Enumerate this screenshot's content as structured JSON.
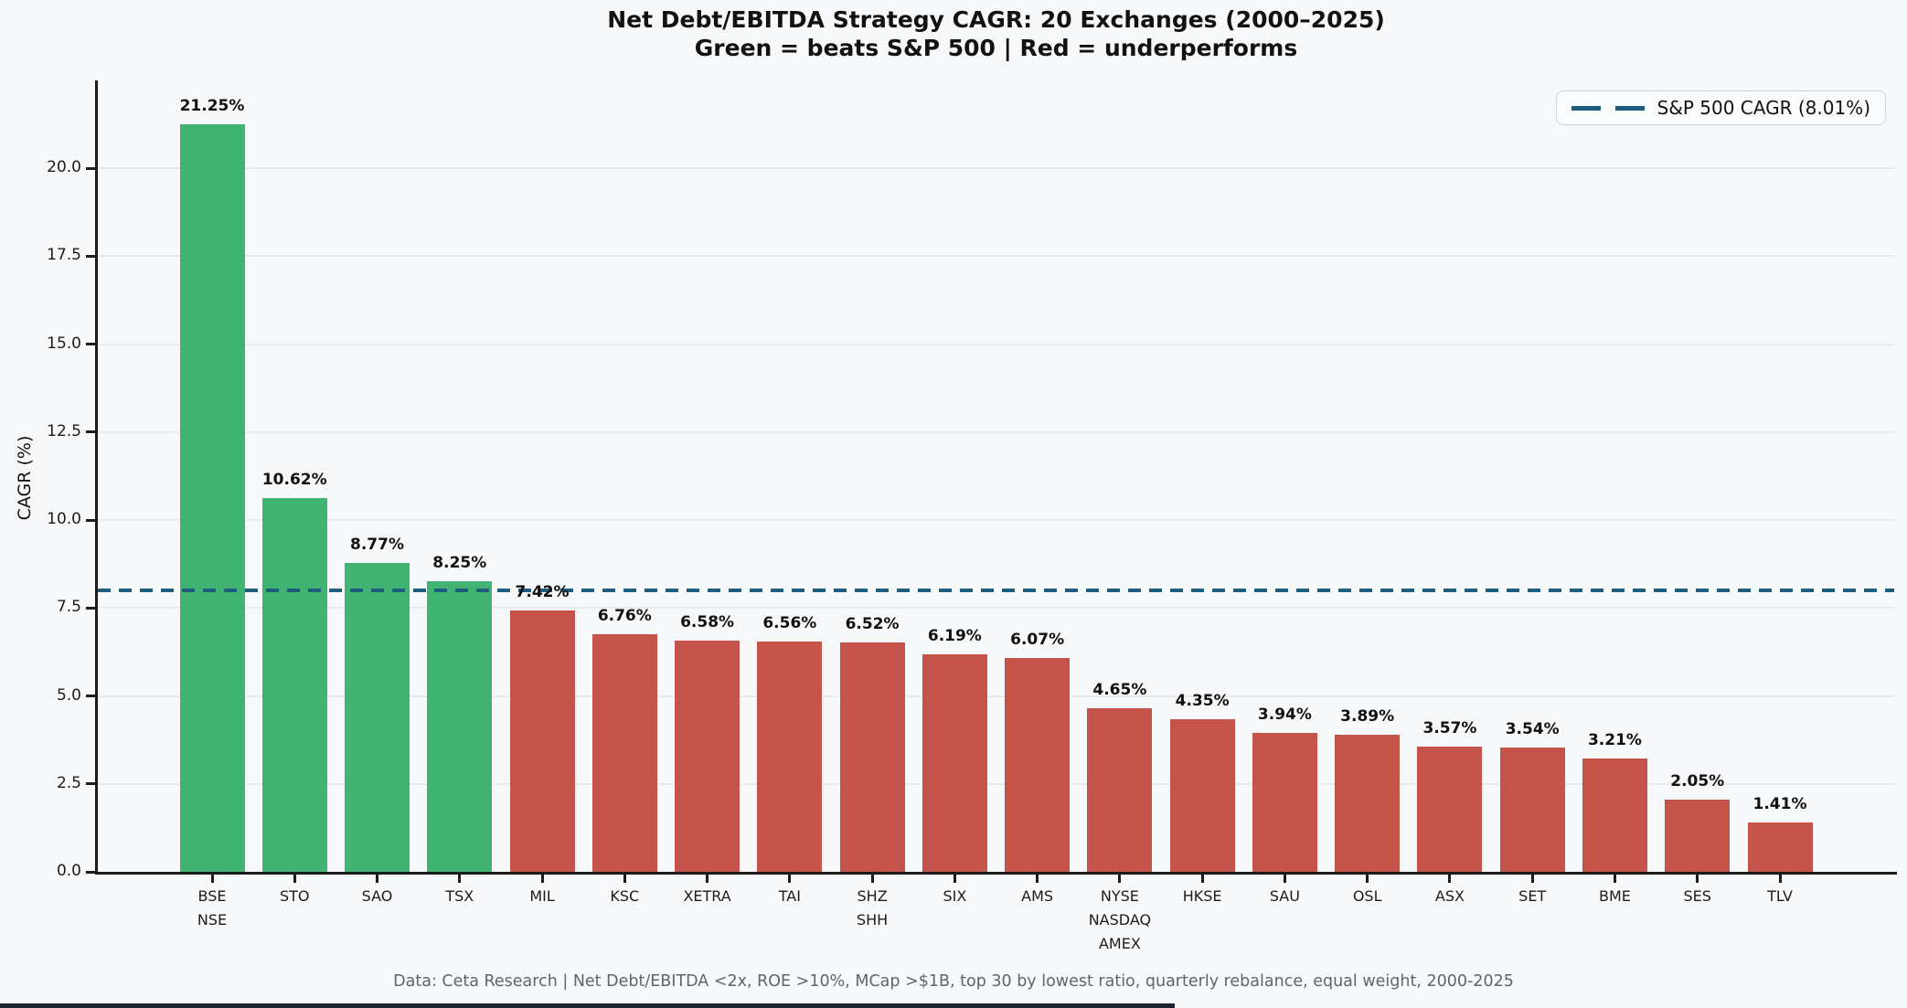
{
  "title": "Net Debt/EBITDA Strategy CAGR: 20 Exchanges (2000–2025)",
  "subtitle": "Green = beats S&P 500 | Red = underperforms",
  "footer": "Data: Ceta Research | Net Debt/EBITDA <2x, ROE >10%, MCap >$1B, top 30 by lowest ratio, quarterly rebalance, equal weight, 2000-2025",
  "legend": {
    "label": "S&P 500 CAGR (8.01%)",
    "position": "upper right"
  },
  "colors": {
    "green": "#41b473",
    "red": "#c4544b",
    "refline": "#1f5d7f",
    "grid": "#e8eaec",
    "axis": "#1c1c1c",
    "background": "#f7f8fa",
    "footer_text": "#5d656d"
  },
  "chart_data": {
    "type": "bar",
    "title": "Net Debt/EBITDA Strategy CAGR: 20 Exchanges (2000–2025)",
    "subtitle": "Green = beats S&P 500 | Red = underperforms",
    "categories": [
      "BSE\nNSE",
      "STO",
      "SAO",
      "TSX",
      "MIL",
      "KSC",
      "XETRA",
      "TAI",
      "SHZ\nSHH",
      "SIX",
      "AMS",
      "NYSE\nNASDAQ\nAMEX",
      "HKSE",
      "SAU",
      "OSL",
      "ASX",
      "SET",
      "BME",
      "SES",
      "TLV"
    ],
    "values": [
      21.25,
      10.62,
      8.77,
      8.25,
      7.42,
      6.76,
      6.58,
      6.56,
      6.52,
      6.19,
      6.07,
      4.65,
      4.35,
      3.94,
      3.89,
      3.57,
      3.54,
      3.21,
      2.05,
      1.41
    ],
    "value_labels": [
      "21.25%",
      "10.62%",
      "8.77%",
      "8.25%",
      "7.42%",
      "6.76%",
      "6.58%",
      "6.56%",
      "6.52%",
      "6.19%",
      "6.07%",
      "4.65%",
      "4.35%",
      "3.94%",
      "3.89%",
      "3.57%",
      "3.54%",
      "3.21%",
      "2.05%",
      "1.41%"
    ],
    "beats_benchmark": [
      true,
      true,
      true,
      true,
      false,
      false,
      false,
      false,
      false,
      false,
      false,
      false,
      false,
      false,
      false,
      false,
      false,
      false,
      false,
      false
    ],
    "xlabel": "",
    "ylabel": "CAGR (%)",
    "ylim": [
      0,
      22.5
    ],
    "yticks": [
      0,
      2.5,
      5,
      7.5,
      10,
      12.5,
      15,
      17.5,
      20
    ],
    "ytick_labels": [
      "0.0",
      "2.5",
      "5.0",
      "7.5",
      "10.0",
      "12.5",
      "15.0",
      "17.5",
      "20.0"
    ],
    "grid": true,
    "legend_position": "upper right",
    "reference_line": {
      "value": 8.01,
      "label": "S&P 500 CAGR (8.01%)",
      "style": "dashed"
    }
  }
}
